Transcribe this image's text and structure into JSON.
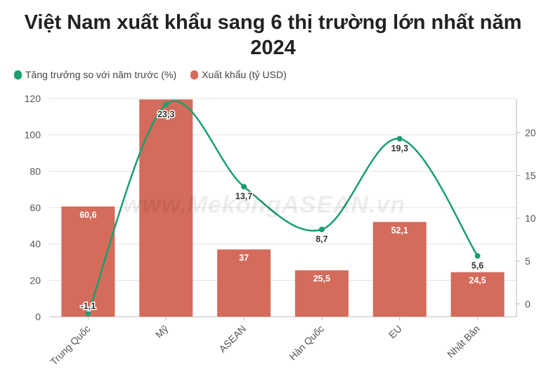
{
  "chart_data": {
    "type": "bar",
    "title": "Việt Nam xuất khẩu sang 6 thị trường lớn nhất năm 2024",
    "categories": [
      "Trung Quốc",
      "Mỹ",
      "ASEAN",
      "Hàn Quốc",
      "EU",
      "Nhật Bản"
    ],
    "series": [
      {
        "name": "Xuất khẩu (tỷ USD)",
        "type": "bar",
        "axis": "left",
        "values": [
          60.6,
          119.5,
          37,
          25.5,
          52.1,
          24.5
        ],
        "labels": [
          "60,6",
          "",
          "37",
          "25,5",
          "52,1",
          "24,5"
        ],
        "color": "#d46b5b"
      },
      {
        "name": "Tăng trưởng so với năm trước (%)",
        "type": "line",
        "axis": "right",
        "values": [
          -1.1,
          23.3,
          13.7,
          8.7,
          19.3,
          5.6
        ],
        "labels": [
          "-1,1",
          "23,3",
          "13,7",
          "8,7",
          "19,3",
          "5,6"
        ],
        "color": "#1a9e6e"
      }
    ],
    "ylim_left": [
      0,
      120
    ],
    "yticks_left": [
      0,
      20,
      40,
      60,
      80,
      100,
      120
    ],
    "ylim_right": [
      -1.5,
      24
    ],
    "yticks_right": [
      0,
      5,
      10,
      15,
      20
    ],
    "grid": true,
    "legend": "top-left"
  },
  "watermark": "www.MekongASEAN.vn"
}
